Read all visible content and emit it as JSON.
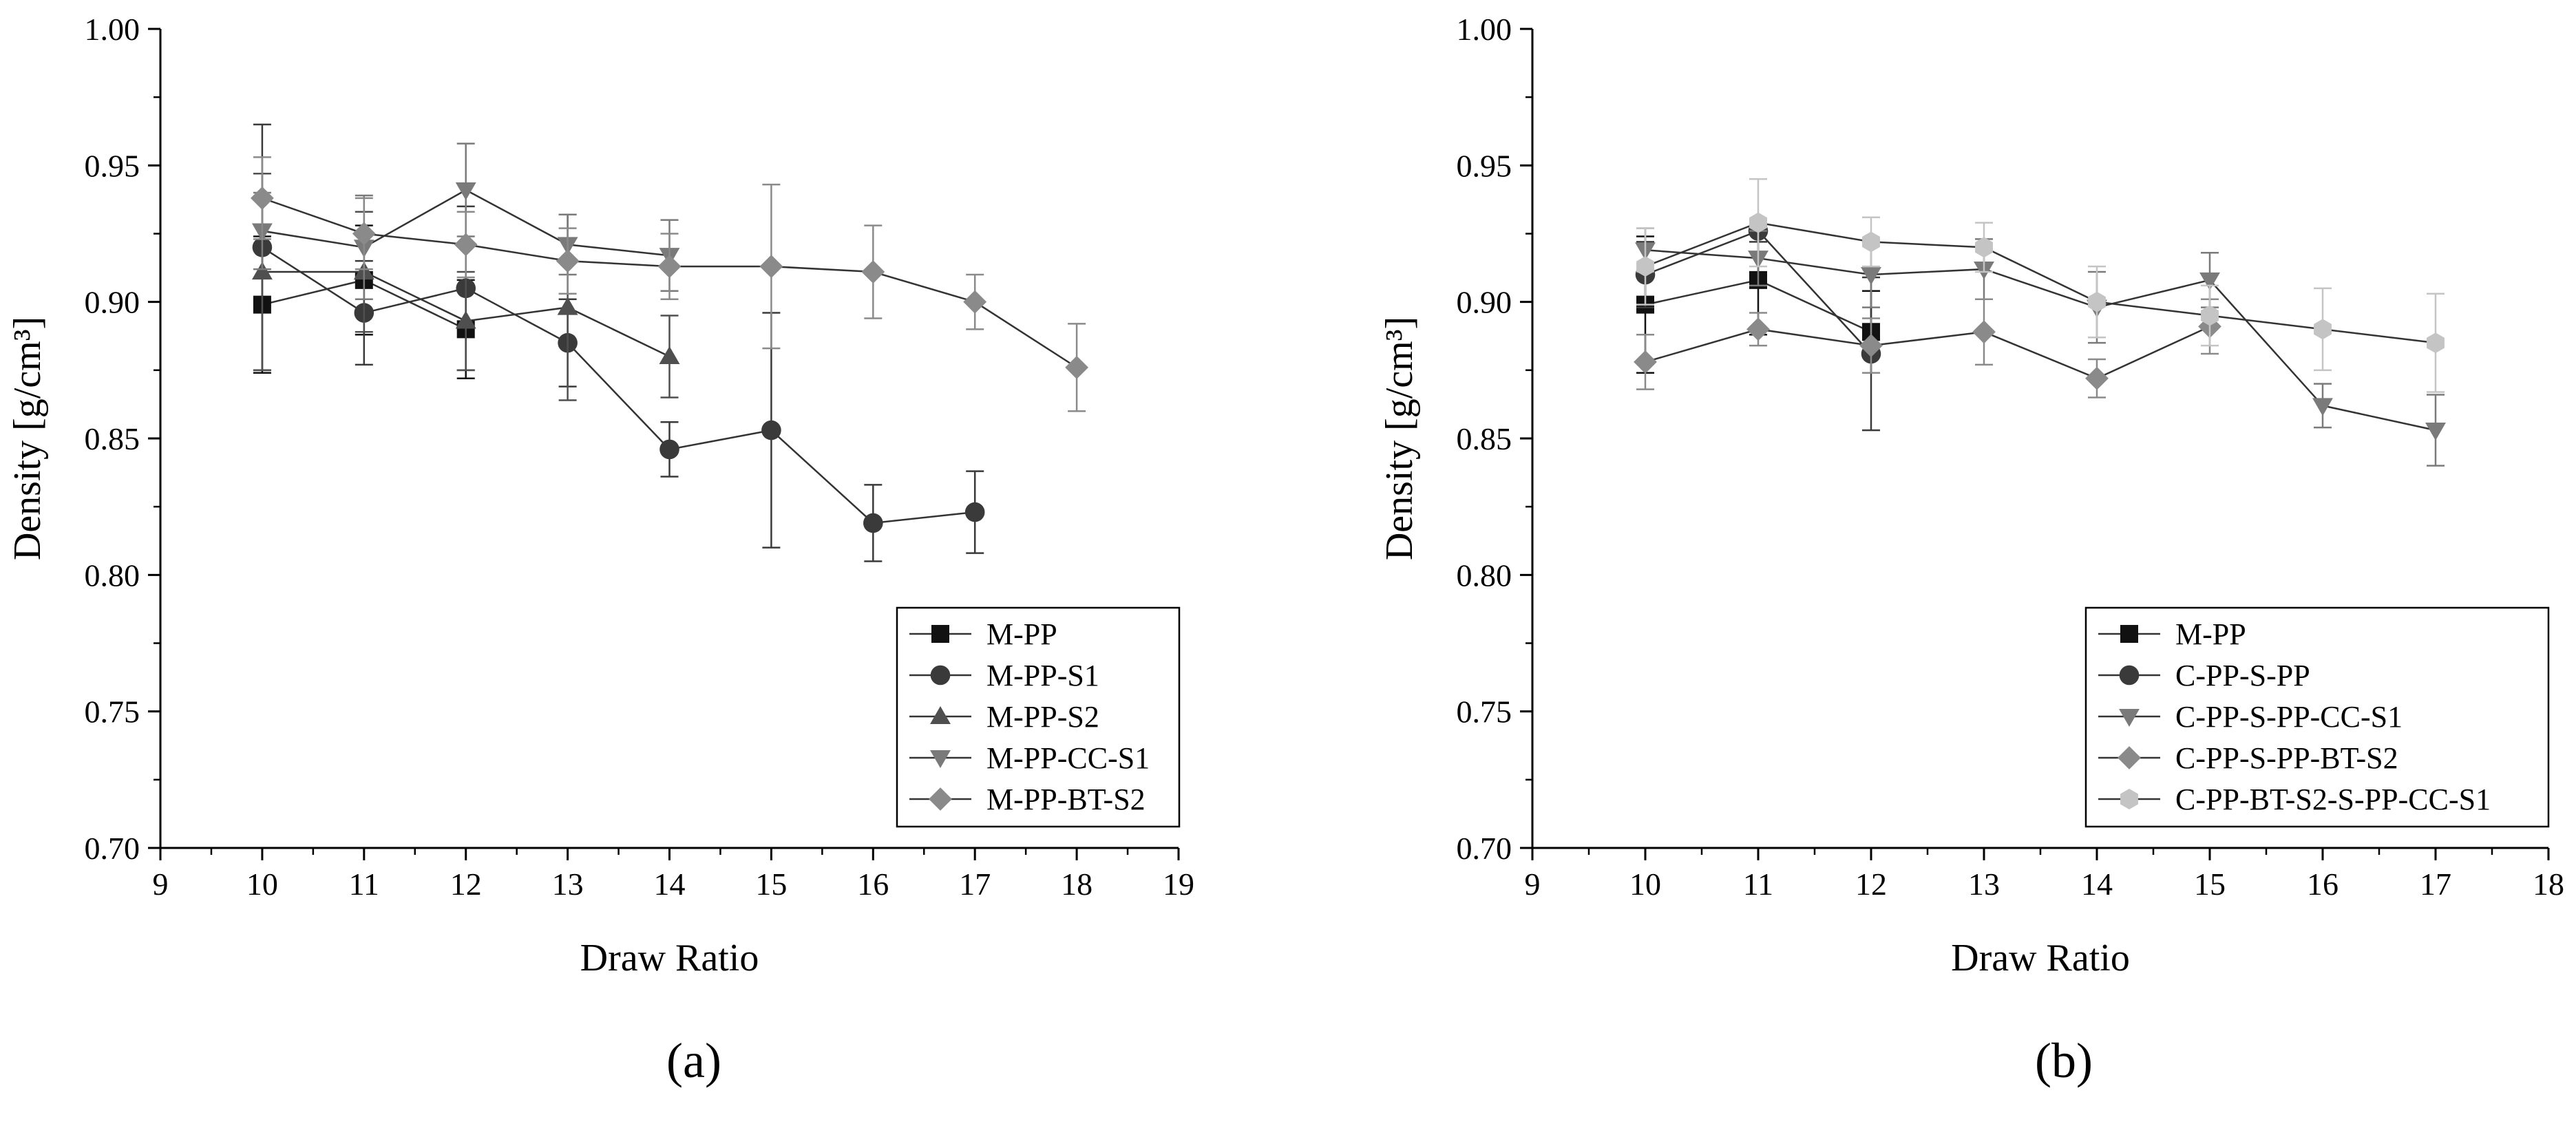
{
  "chart_data": [
    {
      "type": "line",
      "panel_label": "(a)",
      "xlabel": "Draw Ratio",
      "ylabel": "Density [g/cm³]",
      "xlim": [
        9,
        19
      ],
      "ylim": [
        0.7,
        1.0
      ],
      "xticks": [
        9,
        10,
        11,
        12,
        13,
        14,
        15,
        16,
        17,
        18,
        19
      ],
      "yticks": [
        "0.70",
        "0.75",
        "0.80",
        "0.85",
        "0.90",
        "0.95",
        "1.00"
      ],
      "legend_position": "bottom-right",
      "series": [
        {
          "name": "M-PP",
          "marker": "square",
          "color": "#111111",
          "x": [
            10,
            11,
            12
          ],
          "y": [
            0.899,
            0.908,
            0.89
          ],
          "err": [
            0.025,
            0.02,
            0.018
          ]
        },
        {
          "name": "M-PP-S1",
          "marker": "circle",
          "color": "#3a3a3a",
          "x": [
            10,
            11,
            12,
            13,
            14,
            15,
            16,
            17
          ],
          "y": [
            0.92,
            0.896,
            0.905,
            0.885,
            0.846,
            0.853,
            0.819,
            0.823
          ],
          "err": [
            0.045,
            0.019,
            0.03,
            0.016,
            0.01,
            0.043,
            0.014,
            0.015
          ]
        },
        {
          "name": "M-PP-S2",
          "marker": "triangle-up",
          "color": "#4f4f4f",
          "x": [
            10,
            11,
            12,
            13,
            14
          ],
          "y": [
            0.911,
            0.911,
            0.893,
            0.898,
            0.88
          ],
          "err": [
            0.036,
            0.022,
            0.018,
            0.034,
            0.015
          ]
        },
        {
          "name": "M-PP-CC-S1",
          "marker": "triangle-down",
          "color": "#7a7a7a",
          "x": [
            10,
            11,
            12,
            13,
            14
          ],
          "y": [
            0.926,
            0.92,
            0.941,
            0.921,
            0.917
          ],
          "err": [
            0.014,
            0.019,
            0.017,
            0.011,
            0.013
          ]
        },
        {
          "name": "M-PP-BT-S2",
          "marker": "diamond",
          "color": "#8a8a8a",
          "x": [
            10,
            11,
            12,
            13,
            14,
            15,
            16,
            17,
            18
          ],
          "y": [
            0.938,
            0.925,
            0.921,
            0.915,
            0.913,
            0.913,
            0.911,
            0.9,
            0.876
          ],
          "err": [
            0.015,
            0.013,
            0.012,
            0.012,
            0.012,
            0.03,
            0.017,
            0.01,
            0.016
          ]
        }
      ]
    },
    {
      "type": "line",
      "panel_label": "(b)",
      "xlabel": "Draw Ratio",
      "ylabel": "Density [g/cm³]",
      "xlim": [
        9,
        18
      ],
      "ylim": [
        0.7,
        1.0
      ],
      "xticks": [
        9,
        10,
        11,
        12,
        13,
        14,
        15,
        16,
        17,
        18
      ],
      "yticks": [
        "0.70",
        "0.75",
        "0.80",
        "0.85",
        "0.90",
        "0.95",
        "1.00"
      ],
      "legend_position": "bottom-right",
      "series": [
        {
          "name": "M-PP",
          "marker": "square",
          "color": "#111111",
          "x": [
            10,
            11,
            12
          ],
          "y": [
            0.899,
            0.908,
            0.889
          ],
          "err": [
            0.025,
            0.02,
            0.015
          ]
        },
        {
          "name": "C-PP-S-PP",
          "marker": "circle",
          "color": "#3a3a3a",
          "x": [
            10,
            11,
            12
          ],
          "y": [
            0.91,
            0.926,
            0.881
          ],
          "err": [
            0.012,
            0.004,
            0.028
          ]
        },
        {
          "name": "C-PP-S-PP-CC-S1",
          "marker": "triangle-down",
          "color": "#7a7a7a",
          "x": [
            10,
            11,
            12,
            13,
            14,
            15,
            16,
            17
          ],
          "y": [
            0.919,
            0.916,
            0.91,
            0.912,
            0.898,
            0.908,
            0.862,
            0.853
          ],
          "err": [
            0.008,
            0.01,
            0.012,
            0.011,
            0.013,
            0.01,
            0.008,
            0.013
          ]
        },
        {
          "name": "C-PP-S-PP-BT-S2",
          "marker": "diamond",
          "color": "#8a8a8a",
          "x": [
            10,
            11,
            12,
            13,
            14,
            15
          ],
          "y": [
            0.878,
            0.89,
            0.884,
            0.889,
            0.872,
            0.891
          ],
          "err": [
            0.01,
            0.006,
            0.01,
            0.012,
            0.007,
            0.01
          ]
        },
        {
          "name": "C-PP-BT-S2-S-PP-CC-S1",
          "marker": "hexagon",
          "color": "#c4c4c4",
          "x": [
            10,
            11,
            12,
            13,
            14,
            15,
            16,
            17
          ],
          "y": [
            0.913,
            0.929,
            0.922,
            0.92,
            0.9,
            0.895,
            0.89,
            0.885
          ],
          "err": [
            0.014,
            0.016,
            0.009,
            0.009,
            0.013,
            0.011,
            0.015,
            0.018
          ]
        }
      ]
    }
  ]
}
